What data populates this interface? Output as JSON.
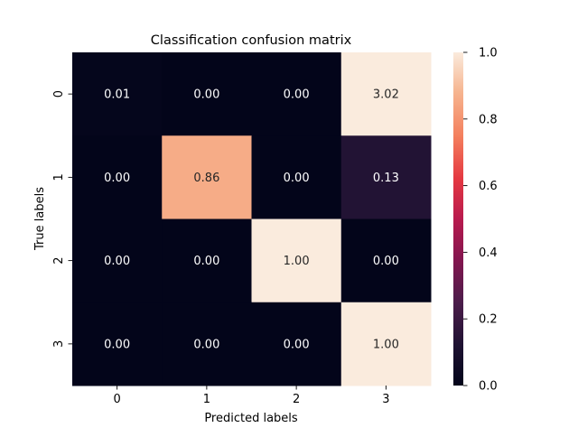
{
  "chart_data": {
    "type": "heatmap",
    "title": "Classification confusion matrix",
    "xlabel": "Predicted labels",
    "ylabel": "True labels",
    "x_categories": [
      "0",
      "1",
      "2",
      "3"
    ],
    "y_categories": [
      "0",
      "1",
      "2",
      "3"
    ],
    "values": [
      [
        0.01,
        0.0,
        0.0,
        3.02
      ],
      [
        0.0,
        0.86,
        0.0,
        0.13
      ],
      [
        0.0,
        0.0,
        1.0,
        0.0
      ],
      [
        0.0,
        0.0,
        0.0,
        1.0
      ]
    ],
    "cell_labels": [
      [
        "0.01",
        "0.00",
        "0.00",
        "3.02"
      ],
      [
        "0.00",
        "0.86",
        "0.00",
        "0.13"
      ],
      [
        "0.00",
        "0.00",
        "1.00",
        "0.00"
      ],
      [
        "0.00",
        "0.00",
        "0.00",
        "1.00"
      ]
    ],
    "colorbar": {
      "range": [
        0.0,
        1.0
      ],
      "ticks": [
        "0.0",
        "0.2",
        "0.4",
        "0.6",
        "0.8",
        "1.0"
      ]
    },
    "colormap": "rocket",
    "grid": false
  }
}
